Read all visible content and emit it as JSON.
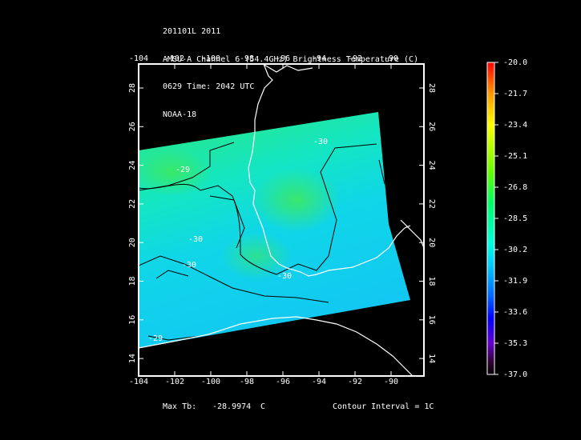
{
  "header": {
    "line1": "201101L 2011",
    "line2": "AMSU-A Channel 6 (54.4GHz) Brightness Temperature (C)",
    "line3": "0629 Time: 2042 UTC",
    "line4": "NOAA-18"
  },
  "axes": {
    "lon_ticks": [
      "-104",
      "-102",
      "-100",
      "-98",
      "-96",
      "-94",
      "-92",
      "-90"
    ],
    "lat_ticks": [
      "28",
      "26",
      "24",
      "22",
      "20",
      "18",
      "16",
      "14"
    ]
  },
  "colorbar": {
    "labels": [
      "-20.0",
      "-21.7",
      "-23.4",
      "-25.1",
      "-26.8",
      "-28.5",
      "-30.2",
      "-31.9",
      "-33.6",
      "-35.3",
      "-37.0"
    ],
    "colors": [
      "#ff0000",
      "#ff9900",
      "#ffff00",
      "#66ff00",
      "#00ff66",
      "#00ffdd",
      "#00ccff",
      "#0066ff",
      "#0000ff",
      "#6600cc",
      "#330033",
      "#000000"
    ]
  },
  "contours": {
    "labels": [
      "-30",
      "-29",
      "-30",
      "-30",
      "-30",
      "-29"
    ]
  },
  "footer": {
    "max_tb_label": "Max Tb:",
    "max_tb_value": "-28.9974",
    "max_tb_unit": "C",
    "contour_interval": "Contour Interval = 1C"
  }
}
